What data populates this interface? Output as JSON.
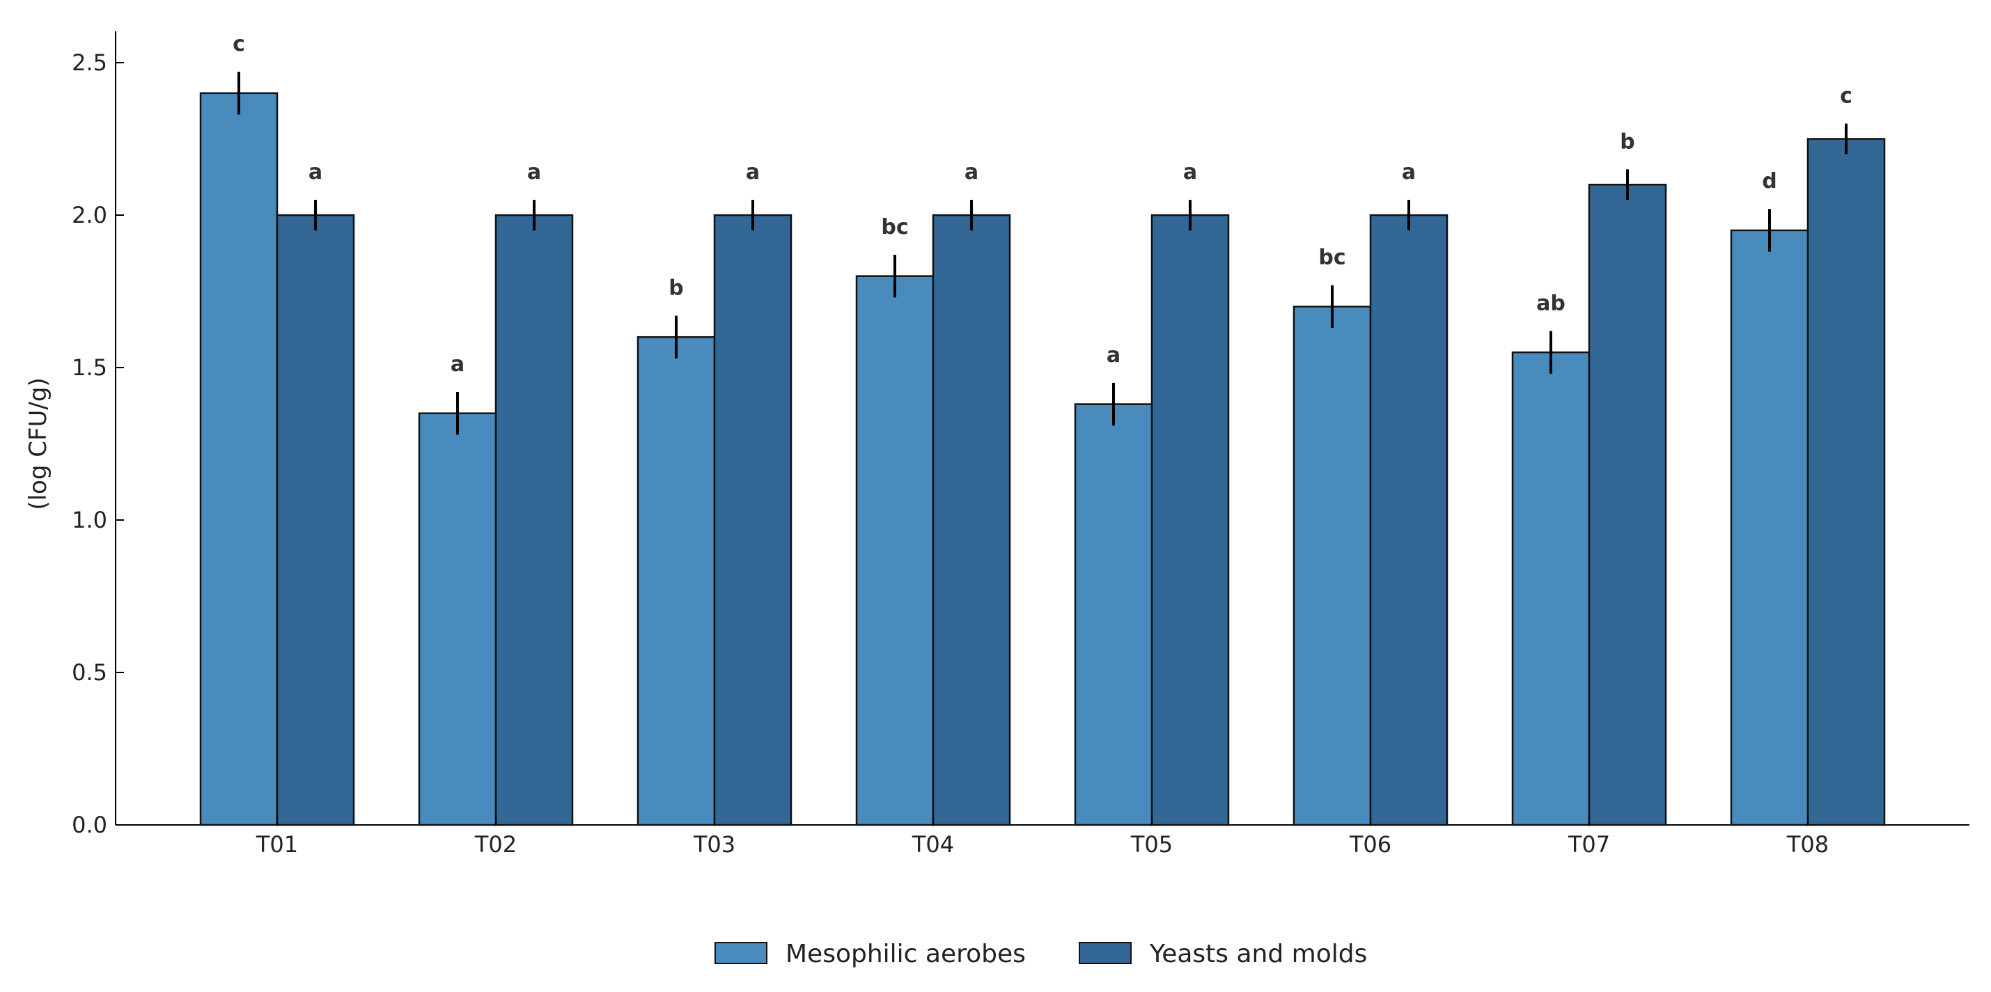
{
  "chart_data": {
    "type": "bar",
    "title": "",
    "xlabel": "",
    "ylabel": "(log CFU/g)",
    "ylim": [
      0,
      2.6
    ],
    "yticks": [
      "0.0",
      "0.5",
      "1.0",
      "1.5",
      "2.0",
      "2.5"
    ],
    "categories": [
      "T01",
      "T02",
      "T03",
      "T04",
      "T05",
      "T06",
      "T07",
      "T08"
    ],
    "series": [
      {
        "name": "Mesophilic aerobes",
        "color": "#4a8bbe",
        "values": [
          2.4,
          1.35,
          1.6,
          1.8,
          1.38,
          1.7,
          1.55,
          1.95
        ],
        "errors": [
          0.07,
          0.07,
          0.07,
          0.07,
          0.07,
          0.07,
          0.07,
          0.07
        ],
        "labels": [
          "c",
          "a",
          "b",
          "bc",
          "a",
          "bc",
          "ab",
          "d"
        ]
      },
      {
        "name": "Yeasts and molds",
        "color": "#336896",
        "values": [
          2.0,
          2.0,
          2.0,
          2.0,
          2.0,
          2.0,
          2.1,
          2.25
        ],
        "errors": [
          0.05,
          0.05,
          0.05,
          0.05,
          0.05,
          0.05,
          0.05,
          0.05
        ],
        "labels": [
          "a",
          "a",
          "a",
          "a",
          "a",
          "a",
          "b",
          "c"
        ]
      }
    ],
    "legend_position": "bottom-center"
  }
}
